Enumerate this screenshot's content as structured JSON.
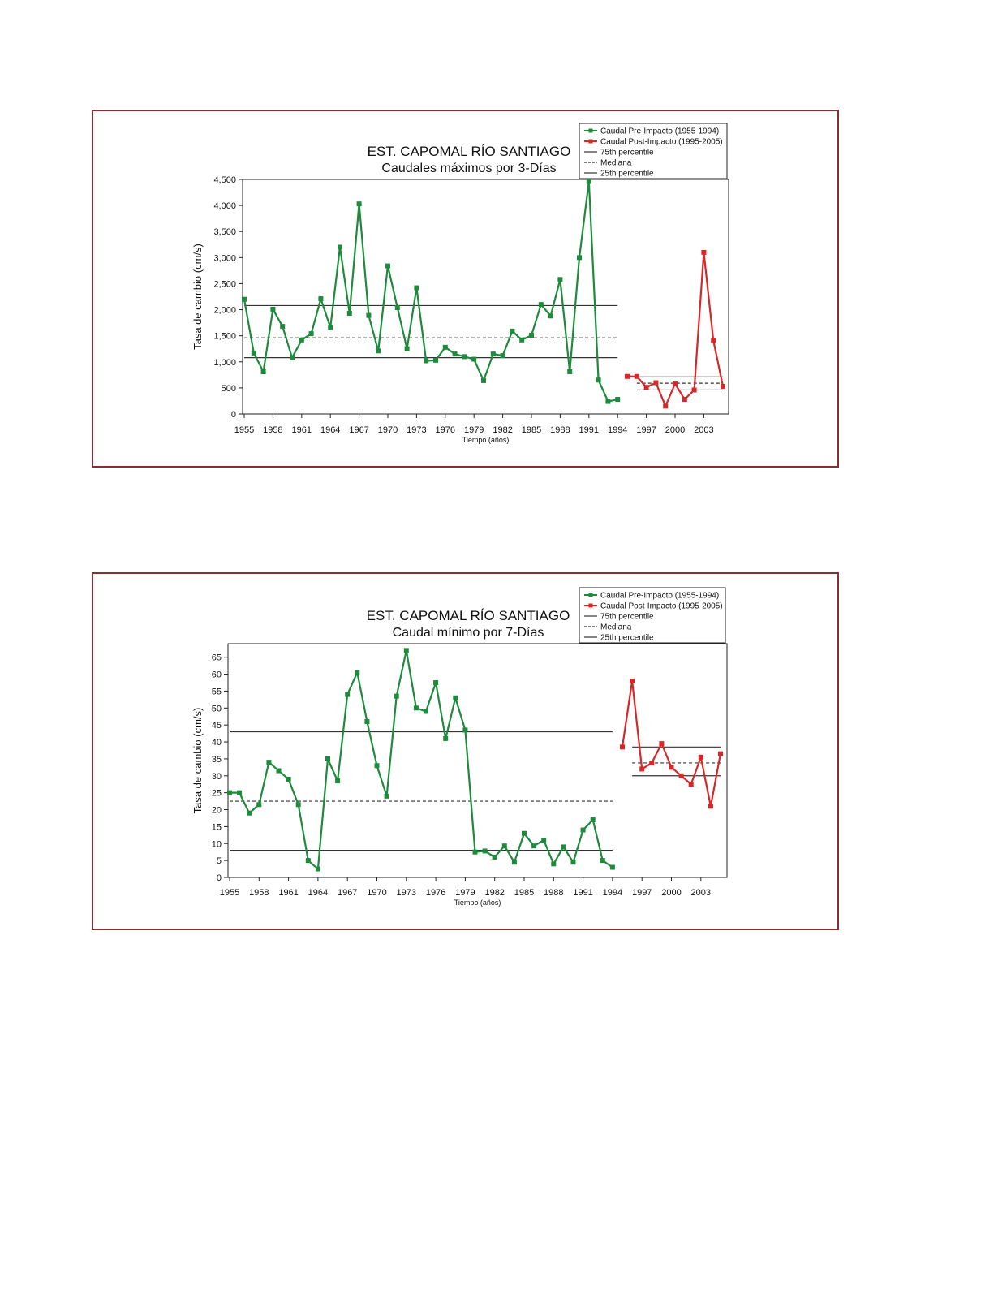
{
  "charts": [
    {
      "chart_data": {
        "type": "line",
        "title": "EST. CAPOMAL RÍO SANTIAGO",
        "subtitle": "Caudales máximos por 3-Días",
        "xlabel": "Tiempo (años)",
        "ylabel": "Tasa de cambio (cm/s)",
        "ylim": [
          0,
          4500
        ],
        "y_ticks": [
          0,
          500,
          1000,
          1500,
          2000,
          2500,
          3000,
          3500,
          4000,
          4500
        ],
        "y_tick_labels": [
          "0",
          "500",
          "1,000",
          "1,500",
          "2,000",
          "2,500",
          "3,000",
          "3,500",
          "4,000",
          "4,500"
        ],
        "x_ticks": [
          "1955",
          "1958",
          "1961",
          "1964",
          "1967",
          "1970",
          "1973",
          "1976",
          "1979",
          "1982",
          "1985",
          "1988",
          "1991",
          "1994",
          "1997",
          "2000",
          "2003"
        ],
        "legend": [
          "Caudal Pre-Impacto (1955-1994)",
          "Caudal Post-Impacto (1995-2005)",
          "75th percentile",
          "Mediana",
          "25th percentile"
        ],
        "legend_position": "top-right",
        "series": [
          {
            "name": "Caudal Pre-Impacto (1955-1994)",
            "color": "#1e8a3c",
            "x": [
              1955,
              1956,
              1957,
              1958,
              1959,
              1960,
              1961,
              1962,
              1963,
              1964,
              1965,
              1966,
              1967,
              1968,
              1969,
              1970,
              1971,
              1972,
              1973,
              1974,
              1975,
              1976,
              1977,
              1978,
              1979,
              1980,
              1981,
              1982,
              1983,
              1984,
              1985,
              1986,
              1987,
              1988,
              1989,
              1990,
              1991,
              1992,
              1993,
              1994
            ],
            "values": [
              2200,
              1170,
              810,
              2010,
              1680,
              1080,
              1420,
              1540,
              2210,
              1660,
              3200,
              1930,
              4030,
              1890,
              1210,
              2840,
              2040,
              1250,
              2420,
              1020,
              1030,
              1280,
              1150,
              1100,
              1050,
              640,
              1150,
              1120,
              1590,
              1420,
              1510,
              2100,
              1880,
              2580,
              810,
              3000,
              4460,
              650,
              240,
              280
            ]
          },
          {
            "name": "Caudal Post-Impacto (1995-2005)",
            "color": "#d62828",
            "x": [
              1995,
              1996,
              1997,
              1998,
              1999,
              2000,
              2001,
              2002,
              2003,
              2004,
              2005
            ],
            "values": [
              720,
              720,
              510,
              600,
              150,
              580,
              280,
              460,
              3100,
              1410,
              530
            ]
          }
        ],
        "percentiles": {
          "pre": {
            "p75": 2080,
            "median": 1460,
            "p25": 1080,
            "x_range": [
              1955,
              1994
            ]
          },
          "post": {
            "p75": 710,
            "median": 590,
            "p25": 460,
            "x_range": [
              1996,
              2005
            ]
          }
        }
      }
    },
    {
      "chart_data": {
        "type": "line",
        "title": "EST. CAPOMAL RÍO SANTIAGO",
        "subtitle": "Caudal mínimo por 7-Días",
        "xlabel": "Tiempo (años)",
        "ylabel": "Tasa de cambio (cm/s)",
        "ylim": [
          0,
          69
        ],
        "y_ticks": [
          0,
          5,
          10,
          15,
          20,
          25,
          30,
          35,
          40,
          45,
          50,
          55,
          60,
          65
        ],
        "y_tick_labels": [
          "0",
          "5",
          "10",
          "15",
          "20",
          "25",
          "30",
          "35",
          "40",
          "45",
          "50",
          "55",
          "60",
          "65"
        ],
        "x_ticks": [
          "1955",
          "1958",
          "1961",
          "1964",
          "1967",
          "1970",
          "1973",
          "1976",
          "1979",
          "1982",
          "1985",
          "1988",
          "1991",
          "1994",
          "1997",
          "2000",
          "2003"
        ],
        "legend": [
          "Caudal Pre-Impacto (1955-1994)",
          "Caudal Post-Impacto (1995-2005)",
          "75th percentile",
          "Mediana",
          "25th percentile"
        ],
        "legend_position": "top-right",
        "series": [
          {
            "name": "Caudal Pre-Impacto (1955-1994)",
            "color": "#1e8a3c",
            "x": [
              1955,
              1956,
              1957,
              1958,
              1959,
              1960,
              1961,
              1962,
              1963,
              1964,
              1965,
              1966,
              1967,
              1968,
              1969,
              1970,
              1971,
              1972,
              1973,
              1974,
              1975,
              1976,
              1977,
              1978,
              1979,
              1980,
              1981,
              1982,
              1983,
              1984,
              1985,
              1986,
              1987,
              1988,
              1989,
              1990,
              1991,
              1992,
              1993,
              1994
            ],
            "values": [
              25,
              25,
              19,
              21.5,
              34,
              31.5,
              29,
              21.5,
              5,
              2.5,
              35,
              28.5,
              54,
              60.5,
              46,
              33,
              24,
              53.5,
              67,
              50,
              49,
              57.5,
              41,
              53,
              43.5,
              7.5,
              7.8,
              6,
              9.3,
              4.5,
              13,
              9.3,
              11,
              4,
              9,
              4.5,
              14,
              17,
              5,
              3
            ]
          },
          {
            "name": "Caudal Post-Impacto (1995-2005)",
            "color": "#d62828",
            "x": [
              1995,
              1996,
              1997,
              1998,
              1999,
              2000,
              2001,
              2002,
              2003,
              2004,
              2005
            ],
            "values": [
              38.5,
              58,
              32,
              33.8,
              39.5,
              32.5,
              30,
              27.5,
              35.5,
              21,
              36.5
            ]
          }
        ],
        "percentiles": {
          "pre": {
            "p75": 43,
            "median": 22.5,
            "p25": 8,
            "x_range": [
              1955,
              1994
            ]
          },
          "post": {
            "p75": 38.5,
            "median": 33.8,
            "p25": 30,
            "x_range": [
              1996,
              2005
            ]
          }
        }
      }
    }
  ]
}
